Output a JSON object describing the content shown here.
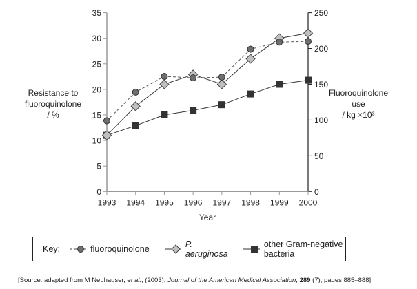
{
  "chart_data": {
    "type": "line",
    "xlabel": "Year",
    "ylabel_left": [
      "Resistance to",
      "fluoroquinolone",
      "/ %"
    ],
    "ylabel_right": [
      "Fluoroquinolone",
      "use",
      "/ kg ×10³"
    ],
    "x": [
      1993,
      1994,
      1995,
      1996,
      1997,
      1998,
      1999,
      2000
    ],
    "ylim_left": [
      0,
      35
    ],
    "yticks_left": [
      0,
      5,
      10,
      15,
      20,
      25,
      30,
      35
    ],
    "ylim_right": [
      0,
      250
    ],
    "yticks_right": [
      0,
      50,
      100,
      150,
      200,
      250
    ],
    "grid": false,
    "series": [
      {
        "name": "fluoroquinolone",
        "axis": "right",
        "style": "dashed",
        "marker": "circle",
        "color": "#666666",
        "values": [
          99,
          139,
          161,
          159,
          160,
          199,
          209,
          210
        ]
      },
      {
        "name": "P. aeruginosa",
        "axis": "left",
        "style": "solid",
        "marker": "diamond",
        "color": "#b0b0b0",
        "values": [
          11,
          16.7,
          21,
          22.9,
          21,
          26,
          30,
          31
        ]
      },
      {
        "name": "other Gram-negative bacteria",
        "axis": "left",
        "style": "solid",
        "marker": "square",
        "color": "#333333",
        "values": [
          11,
          12.9,
          15,
          15.9,
          17,
          19.1,
          21,
          21.8
        ]
      }
    ],
    "legend": {
      "title": "Key:",
      "placement": "bottom"
    }
  },
  "source": {
    "prefix": "[Source: adapted from M Neuhauser, ",
    "etal": "et al.",
    "middle": ", (2003), ",
    "journal": "Journal of the American Medical Association",
    "sep": ", ",
    "volume": "289",
    "suffix": " (7), pages 885–888]"
  }
}
